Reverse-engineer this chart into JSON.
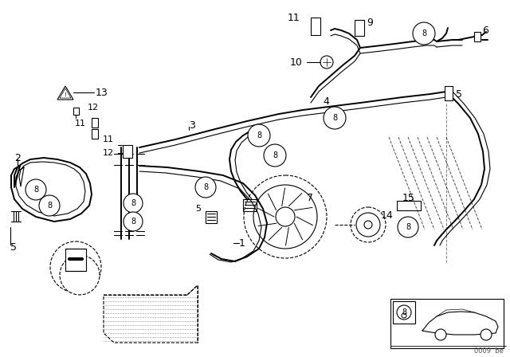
{
  "background_color": "#ffffff",
  "line_color": "#000000",
  "fig_width": 6.4,
  "fig_height": 4.48,
  "dpi": 100,
  "footer_text": "0009  be"
}
